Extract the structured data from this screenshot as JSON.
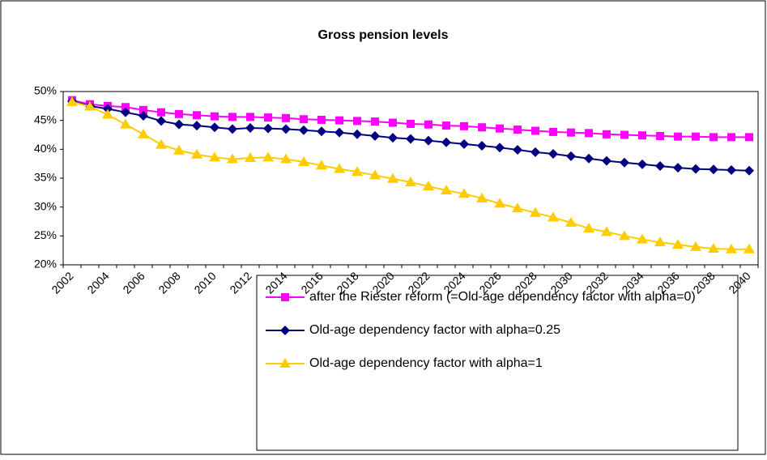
{
  "chart_data": {
    "type": "line",
    "title": "Gross pension levels",
    "categories": [
      "2002",
      null,
      "2004",
      null,
      "2006",
      null,
      "2008",
      null,
      "2010",
      null,
      "2012",
      null,
      "2014",
      null,
      "2016",
      null,
      "2018",
      null,
      "2020",
      null,
      "2022",
      null,
      "2024",
      null,
      "2026",
      null,
      "2028",
      null,
      "2030",
      null,
      "2032",
      null,
      "2034",
      null,
      "2036",
      null,
      "2038",
      null,
      "2040"
    ],
    "series": [
      {
        "name": "after the Riester reform (=Old-age dependency factor with alpha=0)",
        "color": "#ff00ff",
        "marker": "square",
        "values": [
          48.5,
          47.8,
          47.5,
          47.3,
          46.8,
          46.4,
          46.1,
          45.9,
          45.7,
          45.6,
          45.6,
          45.5,
          45.4,
          45.2,
          45.1,
          45.0,
          44.9,
          44.8,
          44.6,
          44.4,
          44.3,
          44.1,
          44.0,
          43.8,
          43.6,
          43.4,
          43.2,
          43.0,
          42.9,
          42.8,
          42.6,
          42.5,
          42.4,
          42.3,
          42.2,
          42.2,
          42.1,
          42.1,
          42.1
        ]
      },
      {
        "name": "Old-age dependency factor with alpha=0.25",
        "color": "#000080",
        "marker": "diamond",
        "values": [
          48.3,
          47.5,
          47.0,
          46.4,
          45.8,
          44.9,
          44.3,
          44.1,
          43.8,
          43.5,
          43.7,
          43.6,
          43.5,
          43.3,
          43.1,
          42.9,
          42.6,
          42.3,
          42.0,
          41.8,
          41.5,
          41.2,
          40.9,
          40.6,
          40.3,
          39.9,
          39.5,
          39.2,
          38.8,
          38.4,
          38.0,
          37.7,
          37.4,
          37.1,
          36.8,
          36.6,
          36.5,
          36.4,
          36.3
        ]
      },
      {
        "name": "Old-age dependency factor with alpha=1",
        "color": "#ffcc00",
        "marker": "triangle",
        "values": [
          48.2,
          47.4,
          46.0,
          44.3,
          42.6,
          40.8,
          39.8,
          39.1,
          38.6,
          38.3,
          38.5,
          38.6,
          38.3,
          37.8,
          37.2,
          36.6,
          36.1,
          35.5,
          34.9,
          34.3,
          33.6,
          32.9,
          32.3,
          31.5,
          30.6,
          29.8,
          29.0,
          28.2,
          27.3,
          26.3,
          25.7,
          25.0,
          24.4,
          23.9,
          23.5,
          23.1,
          22.8,
          22.7,
          22.7
        ]
      }
    ],
    "ylim": [
      20,
      50
    ],
    "yticks": [
      {
        "value": 20,
        "label": "20%"
      },
      {
        "value": 25,
        "label": "25%"
      },
      {
        "value": 30,
        "label": "30%"
      },
      {
        "value": 35,
        "label": "35%"
      },
      {
        "value": 40,
        "label": "40%"
      },
      {
        "value": 45,
        "label": "45%"
      },
      {
        "value": 50,
        "label": "50%"
      }
    ],
    "grid": false,
    "legend": "bottom"
  }
}
